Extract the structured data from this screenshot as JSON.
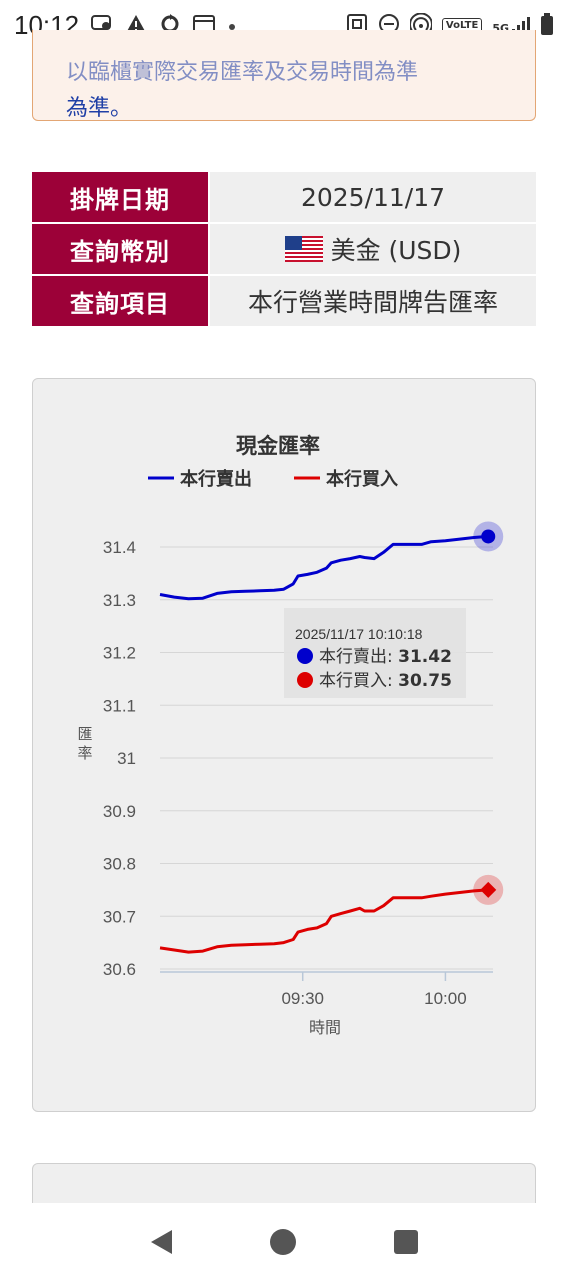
{
  "status_bar": {
    "time": "10:12",
    "left_icons": [
      "chat-icon",
      "warning-icon",
      "sync-icon",
      "wallet-icon",
      "dot-icon"
    ],
    "right_icons": [
      "nfc-icon",
      "dnd-icon",
      "hotspot-icon",
      "volte-icon",
      "5g-signal-icon",
      "battery-icon"
    ],
    "volte_label": "VoLTE",
    "network_label": "5G"
  },
  "notice": {
    "line1": "以臨櫃實際交易匯率及交易時間為準",
    "line2": "為準。"
  },
  "info_table": {
    "rows": [
      {
        "label": "掛牌日期",
        "value": "2025/11/17"
      },
      {
        "label": "查詢幣別",
        "value": "美金 (USD)",
        "flag": "us-flag-icon"
      },
      {
        "label": "查詢項目",
        "value": "本行營業時間牌告匯率"
      }
    ]
  },
  "chart_data": {
    "type": "line",
    "title": "現金匯率",
    "xlabel": "時間",
    "ylabel": "匯率",
    "ylim": [
      30.6,
      31.4
    ],
    "yticks": [
      "31.4",
      "31.3",
      "31.2",
      "31.1",
      "31",
      "30.9",
      "30.8",
      "30.7",
      "30.6"
    ],
    "xticks": [
      "09:30",
      "10:00"
    ],
    "xrange_minutes": [
      540,
      610
    ],
    "legend_position": "top",
    "series": [
      {
        "name": "本行賣出",
        "color": "#0000cc",
        "points": [
          [
            540,
            31.31
          ],
          [
            543,
            31.305
          ],
          [
            546,
            31.302
          ],
          [
            549,
            31.303
          ],
          [
            552,
            31.312
          ],
          [
            555,
            31.315
          ],
          [
            558,
            31.316
          ],
          [
            561,
            31.317
          ],
          [
            564,
            31.318
          ],
          [
            566,
            31.32
          ],
          [
            568,
            31.33
          ],
          [
            569,
            31.345
          ],
          [
            571,
            31.348
          ],
          [
            573,
            31.352
          ],
          [
            575,
            31.36
          ],
          [
            576,
            31.37
          ],
          [
            578,
            31.375
          ],
          [
            580,
            31.378
          ],
          [
            582,
            31.382
          ],
          [
            583,
            31.38
          ],
          [
            585,
            31.378
          ],
          [
            587,
            31.39
          ],
          [
            589,
            31.405
          ],
          [
            592,
            31.405
          ],
          [
            595,
            31.405
          ],
          [
            597,
            31.41
          ],
          [
            600,
            31.412
          ],
          [
            603,
            31.415
          ],
          [
            606,
            31.418
          ],
          [
            609,
            31.42
          ]
        ]
      },
      {
        "name": "本行買入",
        "color": "#dd0000",
        "points": [
          [
            540,
            30.64
          ],
          [
            543,
            30.636
          ],
          [
            546,
            30.632
          ],
          [
            549,
            30.634
          ],
          [
            552,
            30.642
          ],
          [
            555,
            30.645
          ],
          [
            558,
            30.646
          ],
          [
            561,
            30.647
          ],
          [
            564,
            30.648
          ],
          [
            566,
            30.65
          ],
          [
            568,
            30.656
          ],
          [
            569,
            30.67
          ],
          [
            571,
            30.675
          ],
          [
            573,
            30.678
          ],
          [
            575,
            30.686
          ],
          [
            576,
            30.7
          ],
          [
            578,
            30.705
          ],
          [
            580,
            30.71
          ],
          [
            582,
            30.715
          ],
          [
            583,
            30.71
          ],
          [
            585,
            30.71
          ],
          [
            587,
            30.72
          ],
          [
            589,
            30.735
          ],
          [
            592,
            30.735
          ],
          [
            595,
            30.735
          ],
          [
            597,
            30.738
          ],
          [
            600,
            30.742
          ],
          [
            603,
            30.745
          ],
          [
            606,
            30.748
          ],
          [
            609,
            30.75
          ]
        ]
      }
    ],
    "tooltip": {
      "time": "2025/11/17 10:10:18",
      "items": [
        {
          "name": "本行賣出",
          "label": "本行賣出: ",
          "value": "31.42",
          "color": "#0000cc"
        },
        {
          "name": "本行買入",
          "label": "本行買入: ",
          "value": "30.75",
          "color": "#dd0000"
        }
      ]
    }
  },
  "nav_bar": {
    "buttons": [
      "back-icon",
      "home-icon",
      "recents-icon"
    ]
  }
}
